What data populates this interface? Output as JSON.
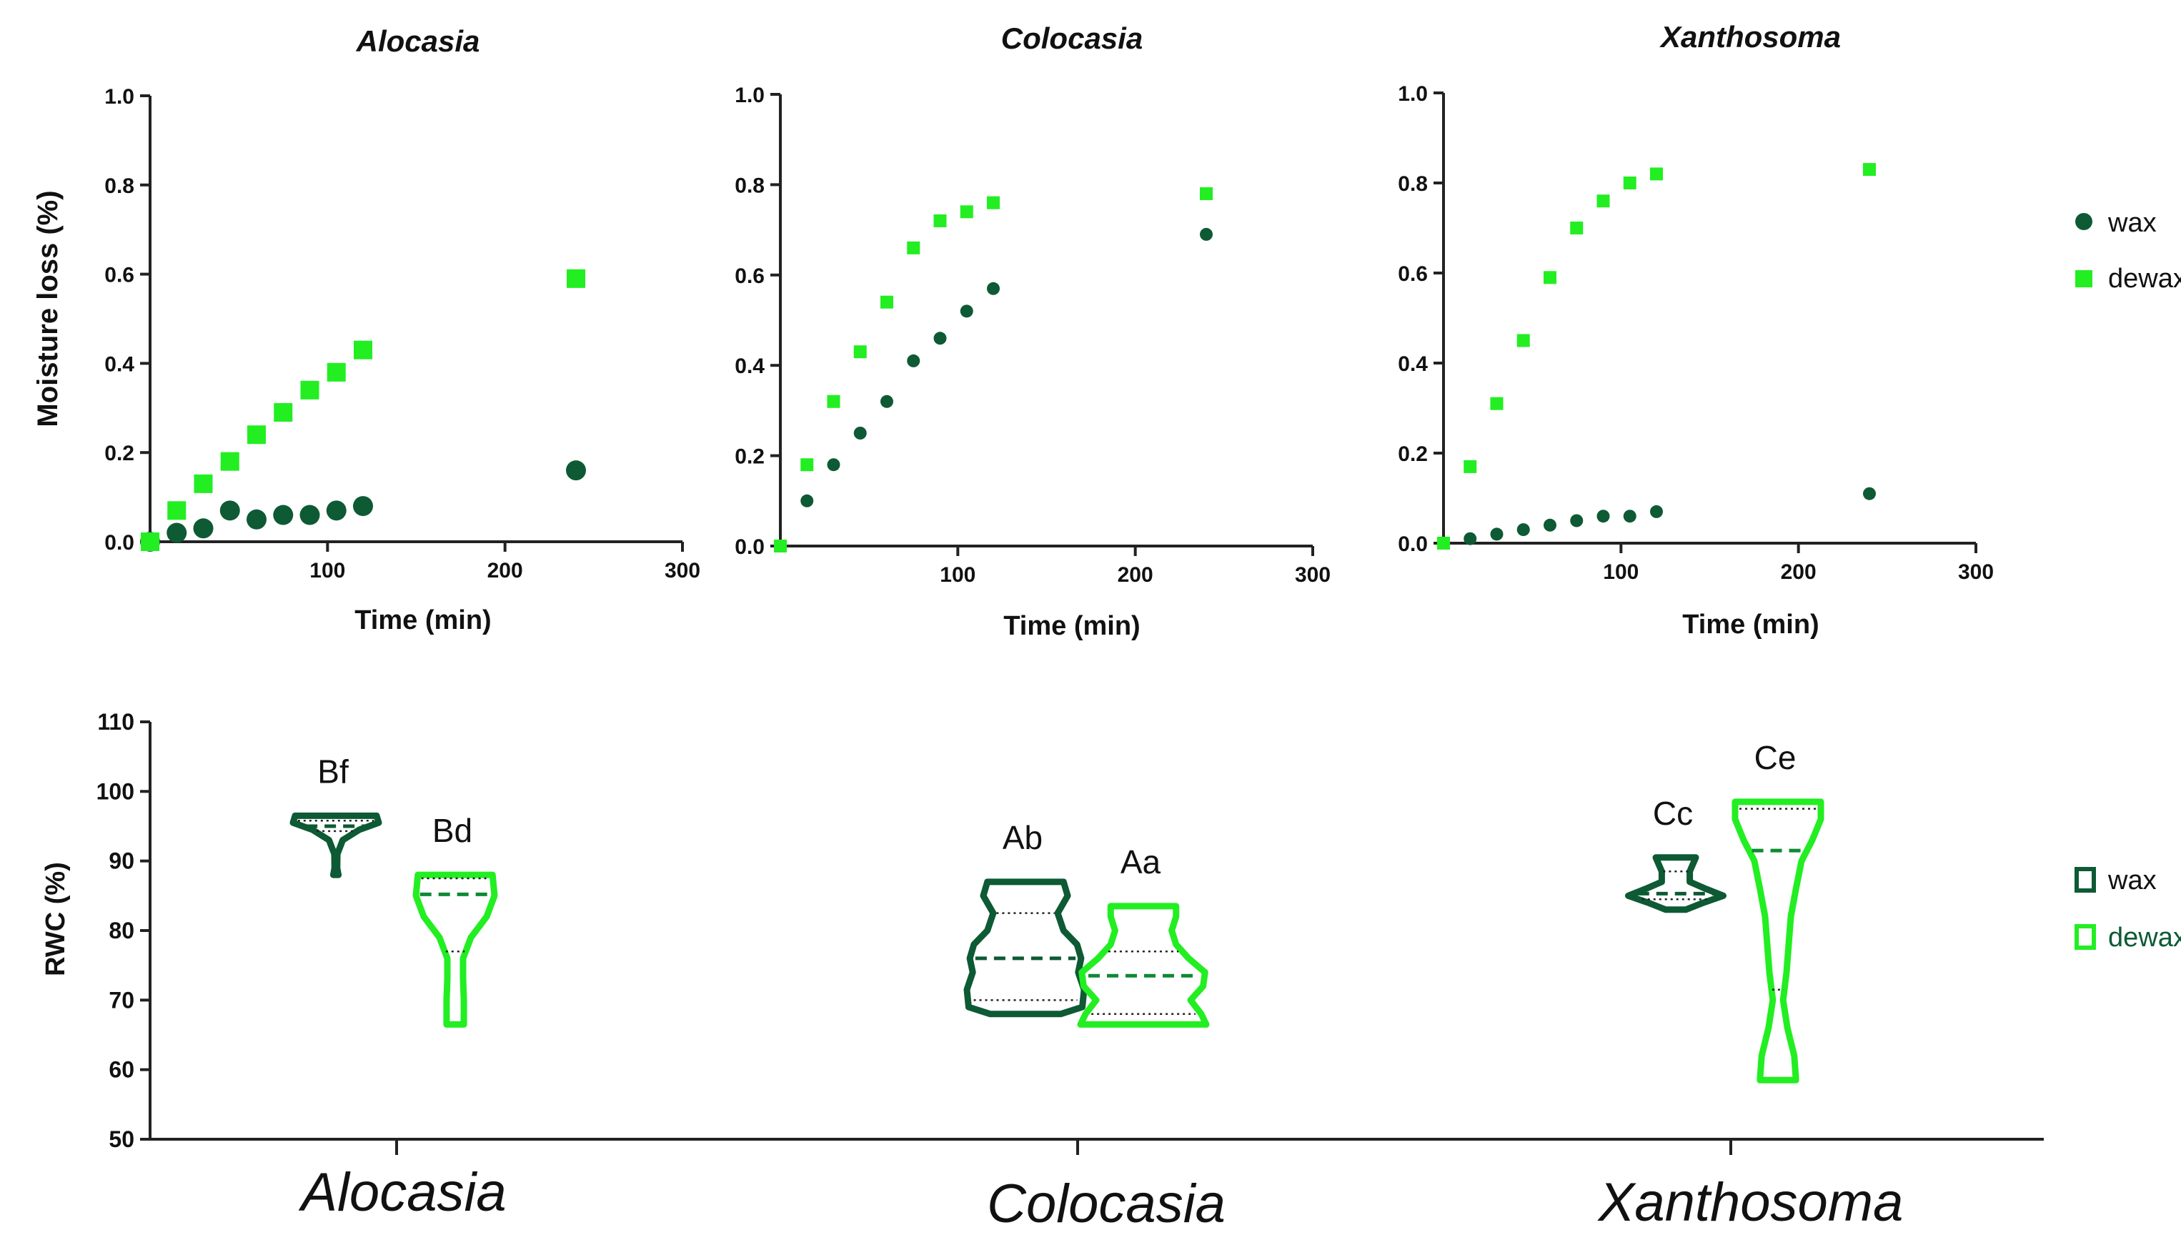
{
  "colors": {
    "wax": "#0d5a34",
    "dewax": "#22ee22",
    "axis": "#222222",
    "text": "#111111"
  },
  "chart_data": [
    {
      "type": "scatter",
      "title": "Alocasia",
      "xlabel": "Time (min)",
      "ylabel": "Moisture loss (%)",
      "xlim": [
        0,
        300
      ],
      "ylim": [
        0,
        1.0
      ],
      "x_ticks": [
        "100",
        "200",
        "300"
      ],
      "y_ticks": [
        "0.0",
        "0.2",
        "0.4",
        "0.6",
        "0.8",
        "1.0"
      ],
      "series": [
        {
          "name": "wax",
          "marker": "circle",
          "x": [
            0,
            15,
            30,
            45,
            60,
            75,
            90,
            105,
            120,
            240
          ],
          "y": [
            0.0,
            0.02,
            0.03,
            0.07,
            0.05,
            0.06,
            0.06,
            0.07,
            0.08,
            0.16
          ]
        },
        {
          "name": "dewax",
          "marker": "square",
          "x": [
            0,
            15,
            30,
            45,
            60,
            75,
            90,
            105,
            120,
            240
          ],
          "y": [
            0.0,
            0.07,
            0.13,
            0.18,
            0.24,
            0.29,
            0.34,
            0.38,
            0.43,
            0.59
          ]
        }
      ]
    },
    {
      "type": "scatter",
      "title": "Colocasia",
      "xlabel": "Time (min)",
      "ylabel": "",
      "xlim": [
        0,
        300
      ],
      "ylim": [
        0,
        1.0
      ],
      "x_ticks": [
        "100",
        "200",
        "300"
      ],
      "y_ticks": [
        "0.0",
        "0.2",
        "0.4",
        "0.6",
        "0.8",
        "1.0"
      ],
      "series": [
        {
          "name": "wax",
          "marker": "circle",
          "x": [
            0,
            15,
            30,
            45,
            60,
            75,
            90,
            105,
            120,
            240
          ],
          "y": [
            0.0,
            0.1,
            0.18,
            0.25,
            0.32,
            0.41,
            0.46,
            0.52,
            0.57,
            0.69
          ]
        },
        {
          "name": "dewax",
          "marker": "square",
          "x": [
            0,
            15,
            30,
            45,
            60,
            75,
            90,
            105,
            120,
            240
          ],
          "y": [
            0.0,
            0.18,
            0.32,
            0.43,
            0.54,
            0.66,
            0.72,
            0.74,
            0.76,
            0.78
          ]
        }
      ]
    },
    {
      "type": "scatter",
      "title": "Xanthosoma",
      "xlabel": "Time (min)",
      "ylabel": "",
      "xlim": [
        0,
        300
      ],
      "ylim": [
        0,
        1.0
      ],
      "x_ticks": [
        "100",
        "200",
        "300"
      ],
      "y_ticks": [
        "0.0",
        "0.2",
        "0.4",
        "0.6",
        "0.8",
        "1.0"
      ],
      "series": [
        {
          "name": "wax",
          "marker": "circle",
          "x": [
            0,
            15,
            30,
            45,
            60,
            75,
            90,
            105,
            120,
            240
          ],
          "y": [
            0.0,
            0.01,
            0.02,
            0.03,
            0.04,
            0.05,
            0.06,
            0.06,
            0.07,
            0.11
          ]
        },
        {
          "name": "dewax",
          "marker": "square",
          "x": [
            0,
            15,
            30,
            45,
            60,
            75,
            90,
            105,
            120,
            240
          ],
          "y": [
            0.0,
            0.17,
            0.31,
            0.45,
            0.59,
            0.7,
            0.76,
            0.8,
            0.82,
            0.83
          ]
        }
      ]
    },
    {
      "type": "violin",
      "ylabel": "RWC  (%)",
      "ylim": [
        50,
        110
      ],
      "y_ticks": [
        "50",
        "60",
        "70",
        "80",
        "90",
        "100",
        "110"
      ],
      "categories": [
        "Alocasia",
        "Colocasia",
        "Xanthosoma"
      ],
      "series": [
        {
          "name": "wax",
          "violins": [
            {
              "letters": "Bf",
              "min": 88,
              "max": 96.5,
              "median": 95,
              "q1": 94.3,
              "q3": 95.8,
              "profile": [
                [
                  88,
                  0.06
                ],
                [
                  89,
                  0.03
                ],
                [
                  91,
                  0.035
                ],
                [
                  93,
                  0.16
                ],
                [
                  94.5,
                  0.55
                ],
                [
                  95.5,
                  1.0
                ],
                [
                  96.5,
                  0.95
                ]
              ]
            },
            {
              "letters": "Ab",
              "min": 68,
              "max": 87,
              "median": 76,
              "q1": 70,
              "q3": 82.5,
              "profile": [
                [
                  68,
                  0.6
                ],
                [
                  69,
                  0.97
                ],
                [
                  71.5,
                  1.0
                ],
                [
                  74,
                  0.9
                ],
                [
                  76,
                  0.95
                ],
                [
                  78,
                  0.88
                ],
                [
                  80,
                  0.65
                ],
                [
                  82.5,
                  0.55
                ],
                [
                  85,
                  0.72
                ],
                [
                  87,
                  0.65
                ]
              ]
            },
            {
              "letters": "Cc",
              "min": 83,
              "max": 90.5,
              "median": 85.3,
              "q1": 84.5,
              "q3": 88.5,
              "profile": [
                [
                  83,
                  0.2
                ],
                [
                  84,
                  0.55
                ],
                [
                  85,
                  0.95
                ],
                [
                  86,
                  0.6
                ],
                [
                  87,
                  0.28
                ],
                [
                  88.5,
                  0.28
                ],
                [
                  90.5,
                  0.4
                ]
              ]
            }
          ]
        },
        {
          "name": "dewax",
          "violins": [
            {
              "letters": "Bd",
              "min": 66.5,
              "max": 88,
              "median": 85.2,
              "q1": 77,
              "q3": 87.5,
              "profile": [
                [
                  66.5,
                  0.22
                ],
                [
                  70,
                  0.22
                ],
                [
                  73,
                  0.2
                ],
                [
                  76,
                  0.2
                ],
                [
                  79,
                  0.4
                ],
                [
                  82,
                  0.8
                ],
                [
                  85,
                  1.0
                ],
                [
                  88,
                  0.95
                ]
              ]
            },
            {
              "letters": "Aa",
              "min": 66.5,
              "max": 83.5,
              "median": 73.5,
              "q1": 68,
              "q3": 77,
              "profile": [
                [
                  66.5,
                  1.0
                ],
                [
                  68,
                  0.92
                ],
                [
                  70,
                  0.75
                ],
                [
                  72,
                  0.95
                ],
                [
                  74,
                  0.98
                ],
                [
                  76,
                  0.72
                ],
                [
                  78,
                  0.52
                ],
                [
                  80,
                  0.45
                ],
                [
                  82,
                  0.52
                ],
                [
                  83.5,
                  0.52
                ]
              ]
            },
            {
              "letters": "Ce",
              "min": 58.5,
              "max": 98.5,
              "median": 91.5,
              "q1": 71.5,
              "q3": 97.5,
              "profile": [
                [
                  58.5,
                  0.42
                ],
                [
                  62,
                  0.38
                ],
                [
                  66,
                  0.22
                ],
                [
                  70,
                  0.12
                ],
                [
                  74,
                  0.2
                ],
                [
                  78,
                  0.25
                ],
                [
                  82,
                  0.3
                ],
                [
                  86,
                  0.42
                ],
                [
                  90,
                  0.55
                ],
                [
                  93,
                  0.8
                ],
                [
                  96,
                  1.0
                ],
                [
                  98.5,
                  1.0
                ]
              ]
            }
          ]
        }
      ]
    }
  ]
}
